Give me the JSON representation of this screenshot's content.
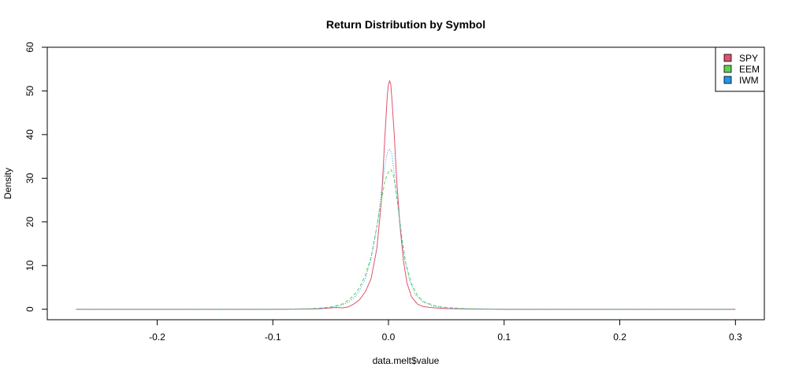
{
  "chart_data": {
    "type": "line",
    "title": "Return Distribution by Symbol",
    "xlabel": "data.melt$value",
    "ylabel": "Density",
    "xlim": [
      -0.295,
      0.325
    ],
    "ylim": [
      -2.4,
      60
    ],
    "x_ticks": [
      -0.2,
      -0.1,
      0.0,
      0.1,
      0.2,
      0.3
    ],
    "x_tick_labels": [
      "-0.2",
      "-0.1",
      "0.0",
      "0.1",
      "0.2",
      "0.3"
    ],
    "y_ticks": [
      0,
      10,
      20,
      30,
      40,
      50,
      60
    ],
    "y_tick_labels": [
      "0",
      "10",
      "20",
      "30",
      "40",
      "50",
      "60"
    ],
    "legend_position": "top-right",
    "grid": false,
    "series": [
      {
        "name": "SPY",
        "color": "#DF536B",
        "dash": "solid",
        "points": [
          [
            -0.27,
            0
          ],
          [
            -0.1,
            0
          ],
          [
            -0.07,
            0.05
          ],
          [
            -0.06,
            0.1
          ],
          [
            -0.05,
            0.3
          ],
          [
            -0.045,
            0.4
          ],
          [
            -0.04,
            0.3
          ],
          [
            -0.035,
            0.5
          ],
          [
            -0.03,
            1.2
          ],
          [
            -0.025,
            2.2
          ],
          [
            -0.02,
            4.0
          ],
          [
            -0.015,
            7.0
          ],
          [
            -0.01,
            14.0
          ],
          [
            -0.006,
            25.0
          ],
          [
            -0.003,
            40.0
          ],
          [
            -0.001,
            49.0
          ],
          [
            0.0,
            51.5
          ],
          [
            0.001,
            52.3
          ],
          [
            0.002,
            51.5
          ],
          [
            0.003,
            48.0
          ],
          [
            0.005,
            40.0
          ],
          [
            0.007,
            30.0
          ],
          [
            0.01,
            19.0
          ],
          [
            0.013,
            11.0
          ],
          [
            0.016,
            6.0
          ],
          [
            0.02,
            2.8
          ],
          [
            0.025,
            1.2
          ],
          [
            0.03,
            0.6
          ],
          [
            0.04,
            0.3
          ],
          [
            0.05,
            0.15
          ],
          [
            0.07,
            0.05
          ],
          [
            0.1,
            0.0
          ],
          [
            0.3,
            0
          ]
        ]
      },
      {
        "name": "EEM",
        "color": "#61D04F",
        "dash": "dashed",
        "points": [
          [
            -0.27,
            0
          ],
          [
            -0.09,
            0
          ],
          [
            -0.07,
            0.1
          ],
          [
            -0.06,
            0.25
          ],
          [
            -0.05,
            0.5
          ],
          [
            -0.04,
            1.2
          ],
          [
            -0.035,
            2.0
          ],
          [
            -0.03,
            3.2
          ],
          [
            -0.025,
            5.0
          ],
          [
            -0.02,
            7.8
          ],
          [
            -0.015,
            12.0
          ],
          [
            -0.01,
            19.0
          ],
          [
            -0.006,
            25.0
          ],
          [
            -0.003,
            29.5
          ],
          [
            0.0,
            31.5
          ],
          [
            0.002,
            32.0
          ],
          [
            0.004,
            31.0
          ],
          [
            0.006,
            28.0
          ],
          [
            0.009,
            22.0
          ],
          [
            0.012,
            15.5
          ],
          [
            0.015,
            10.5
          ],
          [
            0.02,
            5.8
          ],
          [
            0.025,
            3.2
          ],
          [
            0.03,
            1.8
          ],
          [
            0.04,
            0.8
          ],
          [
            0.05,
            0.4
          ],
          [
            0.07,
            0.1
          ],
          [
            0.1,
            0.0
          ],
          [
            0.3,
            0
          ]
        ]
      },
      {
        "name": "IWM",
        "color": "#2297E6",
        "dash": "dotted",
        "points": [
          [
            -0.27,
            0
          ],
          [
            -0.09,
            0
          ],
          [
            -0.07,
            0.1
          ],
          [
            -0.06,
            0.2
          ],
          [
            -0.05,
            0.4
          ],
          [
            -0.04,
            0.9
          ],
          [
            -0.035,
            1.6
          ],
          [
            -0.03,
            2.6
          ],
          [
            -0.025,
            4.3
          ],
          [
            -0.02,
            7.0
          ],
          [
            -0.015,
            11.5
          ],
          [
            -0.01,
            19.0
          ],
          [
            -0.006,
            27.0
          ],
          [
            -0.003,
            33.0
          ],
          [
            -0.001,
            35.8
          ],
          [
            0.0,
            36.5
          ],
          [
            0.001,
            36.6
          ],
          [
            0.003,
            35.5
          ],
          [
            0.005,
            31.0
          ],
          [
            0.008,
            24.0
          ],
          [
            0.011,
            17.0
          ],
          [
            0.014,
            11.5
          ],
          [
            0.018,
            6.8
          ],
          [
            0.023,
            3.4
          ],
          [
            0.03,
            1.6
          ],
          [
            0.04,
            0.6
          ],
          [
            0.05,
            0.3
          ],
          [
            0.07,
            0.08
          ],
          [
            0.1,
            0.0
          ],
          [
            0.3,
            0
          ]
        ]
      }
    ]
  }
}
